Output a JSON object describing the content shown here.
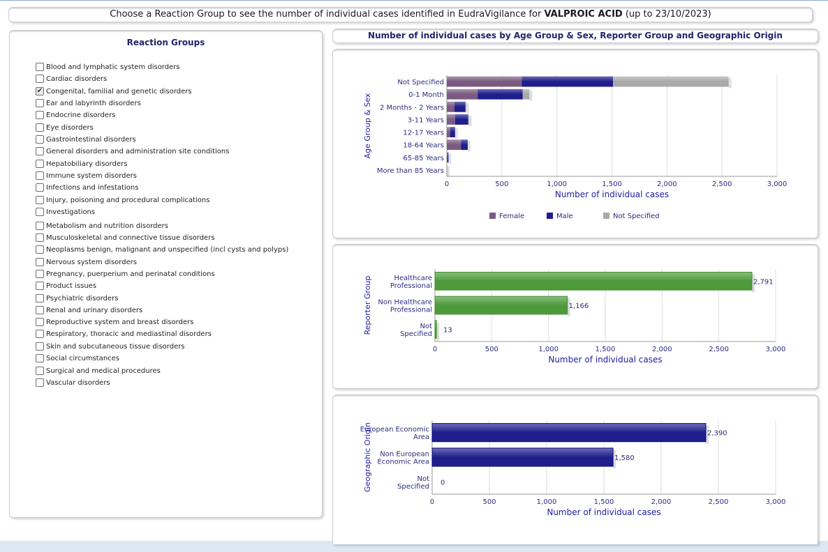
{
  "header": {
    "prefix": "Choose a Reaction Group to see the number of individual cases identified in EudraVigilance for ",
    "substance": "VALPROIC ACID",
    "suffix": " (up to 23/10/2023)"
  },
  "groups_panel": {
    "title": "Reaction Groups",
    "items": [
      {
        "label": "Blood and lymphatic system disorders",
        "checked": false
      },
      {
        "label": "Cardiac disorders",
        "checked": false
      },
      {
        "label": "Congenital, familial and genetic disorders",
        "checked": true
      },
      {
        "label": "Ear and labyrinth disorders",
        "checked": false
      },
      {
        "label": "Endocrine disorders",
        "checked": false
      },
      {
        "label": "Eye disorders",
        "checked": false
      },
      {
        "label": "Gastrointestinal disorders",
        "checked": false
      },
      {
        "label": "General disorders and administration site conditions",
        "checked": false
      },
      {
        "label": "Hepatobiliary disorders",
        "checked": false
      },
      {
        "label": "Immune system disorders",
        "checked": false
      },
      {
        "label": "Infections and infestations",
        "checked": false
      },
      {
        "label": "Injury, poisoning and procedural complications",
        "checked": false
      },
      {
        "label": "Investigations",
        "checked": false
      },
      {
        "label": "Metabolism and nutrition disorders",
        "checked": false
      },
      {
        "label": "Musculoskeletal and connective tissue disorders",
        "checked": false
      },
      {
        "label": "Neoplasms benign, malignant and unspecified (incl cysts and polyps)",
        "checked": false
      },
      {
        "label": "Nervous system disorders",
        "checked": false
      },
      {
        "label": "Pregnancy, puerperium and perinatal conditions",
        "checked": false
      },
      {
        "label": "Product issues",
        "checked": false
      },
      {
        "label": "Psychiatric disorders",
        "checked": false
      },
      {
        "label": "Renal and urinary disorders",
        "checked": false
      },
      {
        "label": "Reproductive system and breast disorders",
        "checked": false
      },
      {
        "label": "Respiratory, thoracic and mediastinal disorders",
        "checked": false
      },
      {
        "label": "Skin and subcutaneous tissue disorders",
        "checked": false
      },
      {
        "label": "Social circumstances",
        "checked": false
      },
      {
        "label": "Surgical and medical procedures",
        "checked": false
      },
      {
        "label": "Vascular disorders",
        "checked": false
      }
    ]
  },
  "charts_header": "Number of individual cases by Age Group & Sex, Reporter Group and Geographic Origin",
  "colors": {
    "female": "#7b5a82",
    "male": "#1e1e8c",
    "not_specified": "#a9a9a9",
    "reporter_green": "#4e9a3c",
    "geo_blue": "#1e1e8c",
    "axis_text": "#2a2a80",
    "axis_title": "#2020a0"
  },
  "chart_data": [
    {
      "type": "bar",
      "stacked": true,
      "orientation": "horizontal",
      "ylabel": "Age Group & Sex",
      "xlabel": "Number of individual cases",
      "xlim": [
        0,
        3000
      ],
      "xticks": [
        "0",
        "500",
        "1,000",
        "1,500",
        "2,000",
        "2,500",
        "3,000"
      ],
      "legend_position": "bottom",
      "categories": [
        "Not Specified",
        "0-1 Month",
        "2 Months - 2 Years",
        "3-11 Years",
        "12-17 Years",
        "18-64 Years",
        "65-85 Years",
        "More than 85 Years"
      ],
      "series": [
        {
          "name": "Female",
          "values": [
            680,
            280,
            70,
            75,
            30,
            130,
            5,
            0
          ]
        },
        {
          "name": "Male",
          "values": [
            830,
            410,
            100,
            120,
            45,
            60,
            10,
            0
          ]
        },
        {
          "name": "Not Specified",
          "values": [
            1050,
            60,
            5,
            5,
            0,
            0,
            0,
            0
          ]
        }
      ]
    },
    {
      "type": "bar",
      "orientation": "horizontal",
      "ylabel": "Reporter Group",
      "xlabel": "Number of individual cases",
      "xlim": [
        0,
        3000
      ],
      "xticks": [
        "0",
        "500",
        "1,000",
        "1,500",
        "2,000",
        "2,500",
        "3,000"
      ],
      "categories": [
        "Healthcare Professional",
        "Non Healthcare Professional",
        "Not Specified"
      ],
      "values": [
        2791,
        1166,
        13
      ],
      "value_labels": [
        "2,791",
        "1,166",
        "13"
      ]
    },
    {
      "type": "bar",
      "orientation": "horizontal",
      "ylabel": "Geographic Origin",
      "xlabel": "Number of individual cases",
      "xlim": [
        0,
        3000
      ],
      "xticks": [
        "0",
        "500",
        "1,000",
        "1,500",
        "2,000",
        "2,500",
        "3,000"
      ],
      "categories": [
        "European Economic Area",
        "Non European Economic Area",
        "Not Specified"
      ],
      "values": [
        2390,
        1580,
        0
      ],
      "value_labels": [
        "2,390",
        "1,580",
        "0"
      ]
    }
  ]
}
